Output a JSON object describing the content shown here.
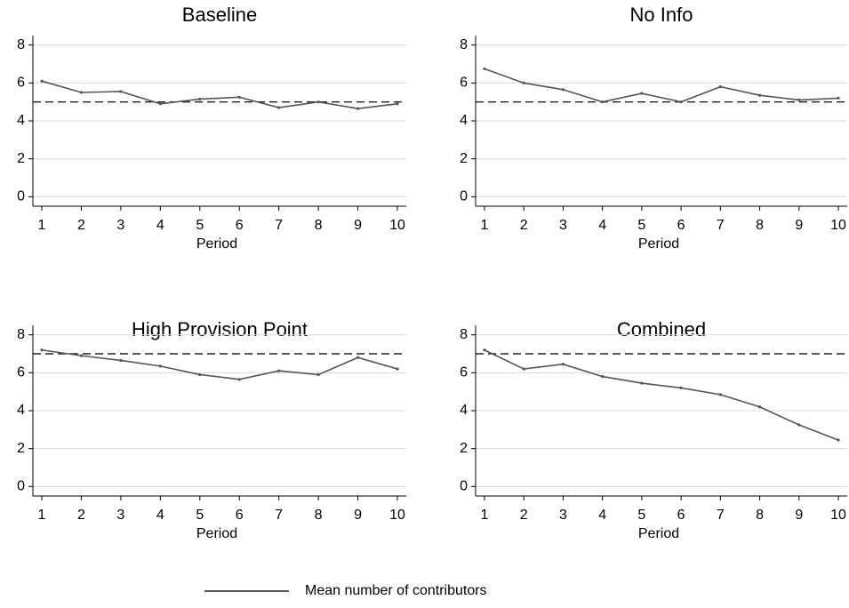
{
  "chart_data": [
    {
      "type": "line",
      "title": "Baseline",
      "xlabel": "Period",
      "x": [
        1,
        2,
        3,
        4,
        5,
        6,
        7,
        8,
        9,
        10
      ],
      "series": [
        {
          "color": "#555555",
          "values": [
            6.1,
            5.5,
            5.55,
            4.9,
            5.15,
            5.25,
            4.7,
            5.0,
            4.65,
            4.9
          ]
        }
      ],
      "reference_line": 5,
      "xlim": [
        0.775,
        10.225
      ],
      "ylim": [
        -0.5,
        8.5
      ],
      "xticks": [
        1,
        2,
        3,
        4,
        5,
        6,
        7,
        8,
        9,
        10
      ],
      "yticks": [
        0,
        2,
        4,
        6,
        8
      ],
      "grid": true
    },
    {
      "type": "line",
      "title": "No Info",
      "xlabel": "Period",
      "x": [
        1,
        2,
        3,
        4,
        5,
        6,
        7,
        8,
        9,
        10
      ],
      "series": [
        {
          "color": "#555555",
          "values": [
            6.75,
            6.0,
            5.65,
            5.0,
            5.45,
            5.0,
            5.8,
            5.35,
            5.1,
            5.2
          ]
        }
      ],
      "reference_line": 5,
      "xlim": [
        0.775,
        10.225
      ],
      "ylim": [
        -0.5,
        8.5
      ],
      "xticks": [
        1,
        2,
        3,
        4,
        5,
        6,
        7,
        8,
        9,
        10
      ],
      "yticks": [
        0,
        2,
        4,
        6,
        8
      ],
      "grid": true
    },
    {
      "type": "line",
      "title": "High Provision Point",
      "xlabel": "Period",
      "x": [
        1,
        2,
        3,
        4,
        5,
        6,
        7,
        8,
        9,
        10
      ],
      "series": [
        {
          "color": "#555555",
          "values": [
            7.2,
            6.9,
            6.65,
            6.35,
            5.9,
            5.65,
            6.1,
            5.9,
            6.8,
            6.2
          ]
        }
      ],
      "reference_line": 7,
      "xlim": [
        0.775,
        10.225
      ],
      "ylim": [
        -0.5,
        8.5
      ],
      "xticks": [
        1,
        2,
        3,
        4,
        5,
        6,
        7,
        8,
        9,
        10
      ],
      "yticks": [
        0,
        2,
        4,
        6,
        8
      ],
      "grid": true
    },
    {
      "type": "line",
      "title": "Combined",
      "xlabel": "Period",
      "x": [
        1,
        2,
        3,
        4,
        5,
        6,
        7,
        8,
        9,
        10
      ],
      "series": [
        {
          "color": "#555555",
          "values": [
            7.2,
            6.2,
            6.45,
            5.8,
            5.45,
            5.2,
            4.85,
            4.2,
            3.25,
            2.45
          ]
        }
      ],
      "reference_line": 7,
      "xlim": [
        0.775,
        10.225
      ],
      "ylim": [
        -0.5,
        8.5
      ],
      "xticks": [
        1,
        2,
        3,
        4,
        5,
        6,
        7,
        8,
        9,
        10
      ],
      "yticks": [
        0,
        2,
        4,
        6,
        8
      ],
      "grid": true
    }
  ],
  "legend": {
    "label": "Mean number of contributors",
    "color": "#555555"
  }
}
